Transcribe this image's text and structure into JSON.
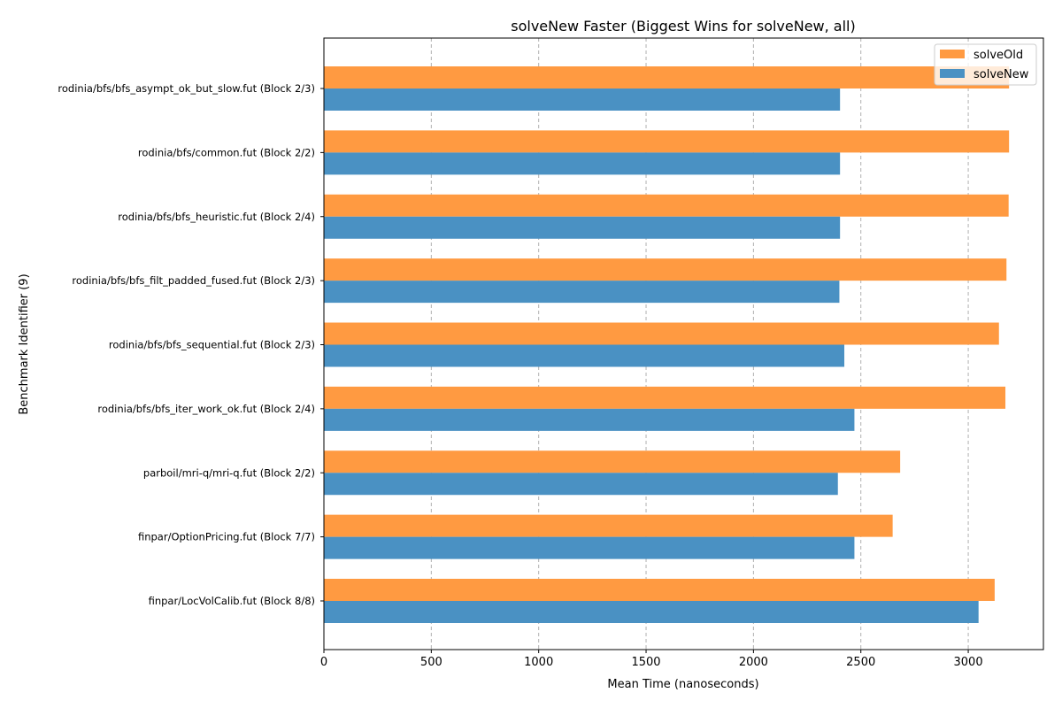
{
  "chart_data": {
    "type": "bar",
    "orientation": "horizontal",
    "title": "solveNew Faster (Biggest Wins for solveNew, all)",
    "xlabel": "Mean Time (nanoseconds)",
    "ylabel": "Benchmark Identifier (9)",
    "xlim": [
      0,
      3350
    ],
    "xticks": [
      0,
      500,
      1000,
      1500,
      2000,
      2500,
      3000
    ],
    "grid": "x, dashed",
    "legend_position": "top-right",
    "categories": [
      "rodinia/bfs/bfs_asympt_ok_but_slow.fut (Block 2/3)",
      "rodinia/bfs/common.fut (Block 2/2)",
      "rodinia/bfs/bfs_heuristic.fut (Block 2/4)",
      "rodinia/bfs/bfs_filt_padded_fused.fut (Block 2/3)",
      "rodinia/bfs/bfs_sequential.fut (Block 2/3)",
      "rodinia/bfs/bfs_iter_work_ok.fut (Block 2/4)",
      "parboil/mri-q/mri-q.fut (Block 2/2)",
      "finpar/OptionPricing.fut (Block 7/7)",
      "finpar/LocVolCalib.fut (Block 8/8)"
    ],
    "series": [
      {
        "name": "solveOld",
        "color": "#ff9a41",
        "values": [
          3190,
          3190,
          3188,
          3178,
          3143,
          3173,
          2683,
          2648,
          3123
        ]
      },
      {
        "name": "solveNew",
        "color": "#4a91c3",
        "values": [
          2403,
          2403,
          2403,
          2400,
          2423,
          2470,
          2393,
          2470,
          3048
        ]
      }
    ]
  }
}
